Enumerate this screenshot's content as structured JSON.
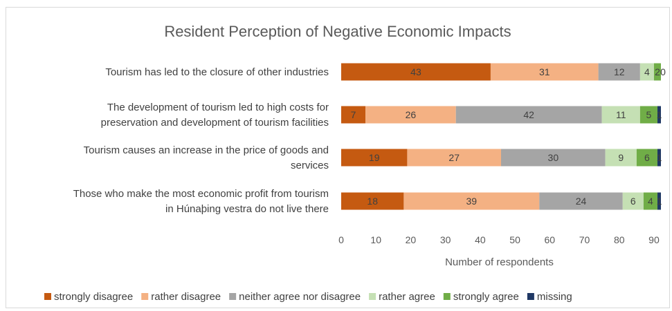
{
  "chart_data": {
    "type": "bar",
    "orientation": "horizontal",
    "stacked": true,
    "title": "Resident Perception of Negative Economic Impacts",
    "xlabel": "Number of respondents",
    "ylabel": "",
    "xlim": [
      0,
      92
    ],
    "xticks": [
      0,
      10,
      20,
      30,
      40,
      50,
      60,
      70,
      80,
      90
    ],
    "grid": false,
    "legend_position": "bottom",
    "categories": [
      [
        "Tourism has led to the closure of other industries"
      ],
      [
        "The development of tourism led to high costs for",
        "preservation and development of tourism facilities"
      ],
      [
        "Tourism causes an increase in the price of goods and",
        "services"
      ],
      [
        "Those who make the most economic profit from tourism",
        "in Húnaþing vestra do not live there"
      ]
    ],
    "series": [
      {
        "name": "strongly disagree",
        "color": "#c55a11",
        "values": [
          43,
          7,
          19,
          18
        ]
      },
      {
        "name": "rather disagree",
        "color": "#f4b183",
        "values": [
          31,
          26,
          27,
          39
        ]
      },
      {
        "name": "neither agree nor disagree",
        "color": "#a5a5a5",
        "values": [
          12,
          42,
          30,
          24
        ]
      },
      {
        "name": "rather agree",
        "color": "#c5e0b4",
        "values": [
          4,
          11,
          9,
          6
        ]
      },
      {
        "name": "strongly agree",
        "color": "#70ad47",
        "values": [
          2,
          5,
          6,
          4
        ]
      },
      {
        "name": "missing",
        "color": "#1f3864",
        "values": [
          0,
          1,
          1,
          1
        ]
      }
    ],
    "labels": [
      [
        "43",
        "31",
        "12",
        "4",
        "2",
        "0"
      ],
      [
        "7",
        "26",
        "42",
        "11",
        "5",
        "1"
      ],
      [
        "19",
        "27",
        "30",
        "9",
        "6",
        "1"
      ],
      [
        "18",
        "39",
        "24",
        "6",
        "4",
        "1"
      ]
    ]
  }
}
